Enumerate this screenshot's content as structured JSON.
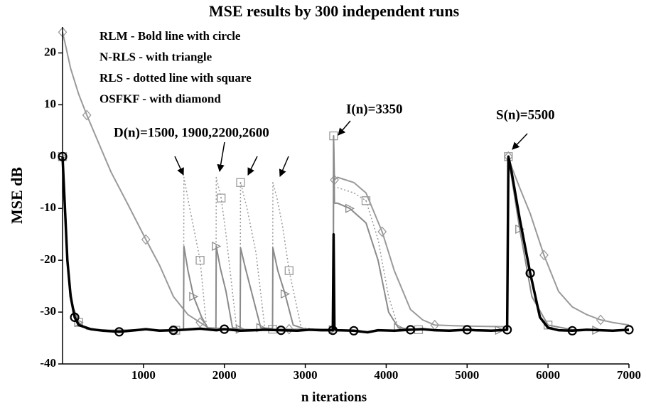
{
  "chart_data": {
    "type": "line",
    "title": "MSE results by 300 independent runs",
    "xlabel": "n iterations",
    "ylabel": "MSE dB",
    "xlim": [
      0,
      7000
    ],
    "ylim": [
      -40,
      25
    ],
    "xticks": [
      1000,
      2000,
      3000,
      4000,
      5000,
      6000,
      7000
    ],
    "yticks": [
      -40,
      -30,
      -20,
      -10,
      0,
      10,
      20
    ],
    "grid": false,
    "legend": "upper left",
    "annotations": [
      {
        "text": "D(n)=1500, 1900,2200,2600"
      },
      {
        "text": "I(n)=3350"
      },
      {
        "text": "S(n)=5500"
      }
    ],
    "series": [
      {
        "name": "OSFKF - with diamond",
        "color": "#9a9a9a",
        "marker": "diamond",
        "linestyle": "solid",
        "x": [
          0,
          30,
          100,
          200,
          300,
          450,
          600,
          800,
          1030,
          1200,
          1370,
          1550,
          1700,
          1800,
          2000,
          2400,
          2800,
          3200,
          3345,
          3350,
          3360,
          3400,
          3600,
          3750,
          3950,
          4100,
          4300,
          4450,
          4600,
          5000,
          5400,
          5495,
          5510,
          5550,
          5650,
          5780,
          5950,
          6130,
          6300,
          6480,
          6650,
          6800,
          7000
        ],
        "values": [
          24,
          22,
          17,
          12,
          8,
          2.5,
          -3,
          -9,
          -16,
          -21,
          -27,
          -30.5,
          -32,
          -33,
          -33.2,
          -33.4,
          -33.3,
          -33.3,
          -33.3,
          4,
          -4.5,
          -4,
          -5,
          -7,
          -14.5,
          -22,
          -29.5,
          -31.5,
          -32.5,
          -32.7,
          -32.8,
          -32.8,
          0,
          -2,
          -6,
          -11,
          -19,
          -26,
          -29,
          -30.5,
          -31.5,
          -32,
          -32.5
        ]
      },
      {
        "name": "RLS - dotted line with square",
        "color": "#9a9a9a",
        "marker": "square",
        "linestyle": "dotted",
        "x": [
          0,
          40,
          80,
          130,
          200,
          300,
          600,
          1000,
          1400,
          1495,
          1500,
          1560,
          1700,
          1780,
          1895,
          1900,
          1960,
          2020,
          2150,
          2195,
          2200,
          2280,
          2390,
          2500,
          2595,
          2600,
          2650,
          2720,
          2800,
          2950,
          3200,
          3345,
          3350,
          3360,
          3400,
          3600,
          3750,
          3900,
          4030,
          4150,
          4400,
          4800,
          5200,
          5495,
          5510,
          5550,
          5650,
          5800,
          6000,
          6300,
          6600,
          7000
        ],
        "values": [
          0,
          -15,
          -24,
          -29,
          -32,
          -33.3,
          -33.5,
          -33.4,
          -33.5,
          -33.4,
          -4,
          -9,
          -20,
          -33,
          -33.3,
          -4,
          -8,
          -15,
          -33,
          -33.3,
          -5,
          -10,
          -18.5,
          -33,
          -33.3,
          -5,
          -8,
          -13.5,
          -22,
          -33,
          -33.4,
          -33.4,
          4,
          -6,
          -6,
          -7,
          -8.5,
          -16,
          -27,
          -33,
          -33.4,
          -33.5,
          -33.4,
          -33.5,
          0,
          -4,
          -14,
          -27,
          -32.5,
          -33.4,
          -33.5,
          -33.6
        ]
      },
      {
        "name": "N-RLS - with triangle",
        "color": "#8a8a8a",
        "marker": "triangle",
        "linestyle": "solid",
        "x": [
          0,
          40,
          80,
          130,
          200,
          300,
          600,
          1000,
          1400,
          1495,
          1500,
          1550,
          1620,
          1720,
          1800,
          1895,
          1900,
          1950,
          2020,
          2100,
          2195,
          2200,
          2260,
          2350,
          2450,
          2595,
          2600,
          2660,
          2750,
          2850,
          3000,
          3200,
          3345,
          3350,
          3360,
          3400,
          3550,
          3750,
          3900,
          4030,
          4150,
          4300,
          4600,
          5000,
          5400,
          5495,
          5510,
          5550,
          5650,
          5800,
          6000,
          6300,
          6600,
          7000
        ],
        "values": [
          0,
          -15,
          -24,
          -29,
          -32,
          -33.3,
          -33.5,
          -33.4,
          -33.5,
          -33.4,
          -17.3,
          -22,
          -27,
          -31,
          -33.2,
          -33.3,
          -17.3,
          -21.5,
          -26,
          -33,
          -33.3,
          -17.6,
          -21.5,
          -27,
          -33,
          -33.2,
          -17.6,
          -22,
          -26.5,
          -32.5,
          -33.3,
          -33.4,
          -33.4,
          4,
          -9,
          -9,
          -10,
          -12.8,
          -20,
          -30,
          -33,
          -33.3,
          -33.5,
          -33.4,
          -33.5,
          -33.4,
          0,
          -4,
          -14,
          -27,
          -32.5,
          -33.4,
          -33.5,
          -33.6
        ]
      },
      {
        "name": "RLM - Bold line with circle",
        "color": "#000000",
        "marker": "circle",
        "linestyle": "bold",
        "x": [
          0,
          30,
          60,
          100,
          150,
          200,
          350,
          500,
          700,
          900,
          1030,
          1200,
          1370,
          1500,
          1700,
          1900,
          2000,
          2200,
          2370,
          2500,
          2700,
          2900,
          3050,
          3200,
          3340,
          3350,
          3360,
          3400,
          3600,
          3770,
          3900,
          4100,
          4300,
          4450,
          4600,
          4780,
          5000,
          5100,
          5300,
          5400,
          5495,
          5510,
          5550,
          5650,
          5780,
          5900,
          6000,
          6130,
          6300,
          6480,
          6650,
          6800,
          7000
        ],
        "values": [
          0,
          -10,
          -20,
          -27,
          -31,
          -32.5,
          -33.3,
          -33.6,
          -33.8,
          -33.5,
          -33.3,
          -33.6,
          -33.5,
          -33.4,
          -33.2,
          -33.5,
          -33.3,
          -33.6,
          -33.5,
          -33.4,
          -33.5,
          -33.6,
          -33.4,
          -33.5,
          -33.5,
          -15,
          -33.3,
          -33.5,
          -33.6,
          -33.9,
          -33.5,
          -33.6,
          -33.4,
          -33.3,
          -33.5,
          -33.6,
          -33.4,
          -33.5,
          -33.6,
          -33.5,
          -33.4,
          0,
          -3,
          -12,
          -22.5,
          -31,
          -33,
          -33.5,
          -33.6,
          -33.4,
          -33.5,
          -33.6,
          -33.4
        ]
      }
    ]
  }
}
